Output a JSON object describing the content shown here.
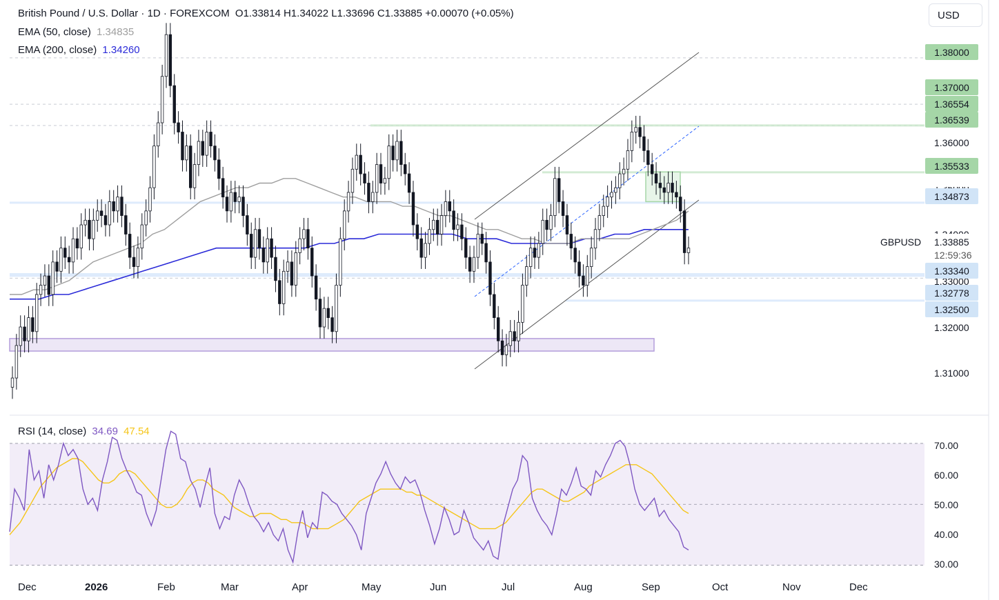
{
  "header": {
    "title": "British Pound / U.S. Dollar · 1D · FOREXCOM",
    "ohlc": "O1.33814 H1.34022 L1.33696 C1.33885 +0.00070 (+0.05%)",
    "ema50_label": "EMA (50, close)",
    "ema50_value": "1.34835",
    "ema200_label": "EMA (200, close)",
    "ema200_value": "1.34260",
    "rsi_label": "RSI (14, close)",
    "rsi_value": "34.69",
    "rsi_ma_value": "47.54"
  },
  "currency_button": "USD",
  "symbol": "GBPUSD",
  "countdown": "12:59:36",
  "colors": {
    "ema50": "#9e9e9e",
    "ema200": "#2a2ad8",
    "rsi": "#7e57c2",
    "rsi_ma": "#f5c518",
    "candle": "#131722",
    "support_zone": "#ede7f6",
    "resistance_tag": "#a5d6a7",
    "support_tag": "#d1e4f7"
  },
  "price_levels": {
    "resistance": [
      "1.38000",
      "1.37000",
      "1.36554",
      "1.36539",
      "1.35533"
    ],
    "pivot": "1.34873",
    "current": "1.33885",
    "support": [
      "1.33340",
      "1.32778",
      "1.32500"
    ]
  },
  "price_axis": [
    "1.36000",
    "1.35000",
    "1.34000",
    "1.33000",
    "1.32000",
    "1.31000"
  ],
  "rsi_axis": [
    "70.00",
    "60.00",
    "50.00",
    "40.00",
    "30.00"
  ],
  "time_axis": [
    "Dec",
    "2026",
    "Feb",
    "Mar",
    "Apr",
    "May",
    "Jun",
    "Jul",
    "Aug",
    "Sep",
    "Oct",
    "Nov",
    "Dec"
  ],
  "chart_data": {
    "type": "candlestick",
    "ylim": [
      1.307,
      1.388
    ],
    "rsi_ylim": [
      29,
      77
    ],
    "closes": [
      1.311,
      1.318,
      1.322,
      1.319,
      1.324,
      1.321,
      1.329,
      1.331,
      1.333,
      1.329,
      1.336,
      1.334,
      1.339,
      1.337,
      1.336,
      1.341,
      1.339,
      1.344,
      1.345,
      1.341,
      1.345,
      1.347,
      1.346,
      1.344,
      1.349,
      1.347,
      1.35,
      1.346,
      1.342,
      1.337,
      1.335,
      1.339,
      1.344,
      1.347,
      1.352,
      1.361,
      1.366,
      1.376,
      1.385,
      1.374,
      1.366,
      1.364,
      1.358,
      1.361,
      1.352,
      1.357,
      1.362,
      1.359,
      1.364,
      1.361,
      1.358,
      1.354,
      1.35,
      1.347,
      1.351,
      1.349,
      1.35,
      1.346,
      1.342,
      1.337,
      1.343,
      1.339,
      1.336,
      1.341,
      1.337,
      1.332,
      1.327,
      1.334,
      1.336,
      1.331,
      1.338,
      1.341,
      1.343,
      1.339,
      1.333,
      1.328,
      1.322,
      1.326,
      1.324,
      1.321,
      1.331,
      1.341,
      1.347,
      1.351,
      1.356,
      1.359,
      1.355,
      1.353,
      1.349,
      1.351,
      1.357,
      1.353,
      1.354,
      1.361,
      1.358,
      1.362,
      1.357,
      1.355,
      1.351,
      1.344,
      1.341,
      1.337,
      1.34,
      1.343,
      1.345,
      1.342,
      1.346,
      1.349,
      1.347,
      1.343,
      1.344,
      1.341,
      1.337,
      1.334,
      1.337,
      1.342,
      1.34,
      1.336,
      1.329,
      1.324,
      1.319,
      1.316,
      1.318,
      1.321,
      1.319,
      1.323,
      1.331,
      1.335,
      1.339,
      1.337,
      1.34,
      1.345,
      1.343,
      1.346,
      1.354,
      1.349,
      1.346,
      1.342,
      1.339,
      1.336,
      1.333,
      1.331,
      1.335,
      1.339,
      1.343,
      1.346,
      1.348,
      1.35,
      1.351,
      1.352,
      1.355,
      1.356,
      1.36,
      1.364,
      1.365,
      1.363,
      1.36,
      1.357,
      1.355,
      1.353,
      1.352,
      1.351,
      1.353,
      1.351,
      1.35,
      1.347,
      1.338,
      1.339
    ],
    "ema50": [
      1.329,
      1.329,
      1.33,
      1.33,
      1.331,
      1.332,
      1.334,
      1.336,
      1.337,
      1.338,
      1.339,
      1.34,
      1.342,
      1.343,
      1.345,
      1.347,
      1.349,
      1.35,
      1.351,
      1.352,
      1.352,
      1.353,
      1.353,
      1.354,
      1.354,
      1.353,
      1.352,
      1.351,
      1.35,
      1.35,
      1.349,
      1.349,
      1.349,
      1.348,
      1.348,
      1.347,
      1.346,
      1.346,
      1.345,
      1.344,
      1.343,
      1.343,
      1.342,
      1.341,
      1.341,
      1.34,
      1.34,
      1.34,
      1.341,
      1.341,
      1.341,
      1.341,
      1.341,
      1.342,
      1.343,
      1.344,
      1.345,
      1.347
    ],
    "ema200": [
      1.328,
      1.328,
      1.328,
      1.329,
      1.329,
      1.33,
      1.331,
      1.332,
      1.333,
      1.334,
      1.335,
      1.336,
      1.337,
      1.338,
      1.339,
      1.339,
      1.339,
      1.339,
      1.339,
      1.339,
      1.339,
      1.34,
      1.34,
      1.341,
      1.341,
      1.342,
      1.342,
      1.342,
      1.342,
      1.342,
      1.342,
      1.341,
      1.341,
      1.341,
      1.34,
      1.34,
      1.34,
      1.34,
      1.34,
      1.341,
      1.341,
      1.342,
      1.342,
      1.343,
      1.343,
      1.343,
      1.343
    ],
    "rsi": [
      41,
      55,
      52,
      48,
      68,
      58,
      61,
      52,
      63,
      58,
      63,
      70,
      66,
      68,
      65,
      55,
      50,
      52,
      48,
      58,
      64,
      72,
      71,
      65,
      61,
      58,
      54,
      53,
      47,
      43,
      48,
      58,
      68,
      74,
      73,
      65,
      64,
      58,
      55,
      49,
      56,
      62,
      47,
      42,
      46,
      45,
      53,
      58,
      55,
      50,
      46,
      44,
      41,
      44,
      40,
      38,
      42,
      35,
      31,
      41,
      48,
      39,
      44,
      42,
      54,
      53,
      51,
      50,
      47,
      45,
      43,
      40,
      35,
      47,
      52,
      57,
      60,
      64,
      60,
      57,
      55,
      59,
      57,
      58,
      54,
      48,
      43,
      37,
      42,
      49,
      45,
      40,
      41,
      48,
      44,
      39,
      37,
      35,
      38,
      33,
      32,
      43,
      49,
      55,
      58,
      66,
      64,
      52,
      48,
      45,
      43,
      40,
      47,
      55,
      53,
      57,
      62,
      56,
      55,
      53,
      61,
      59,
      63,
      66,
      70,
      71,
      69,
      63,
      55,
      50,
      48,
      50,
      52,
      46,
      48,
      45,
      43,
      41,
      36,
      35
    ],
    "rsi_ma": [
      40,
      42,
      44,
      47,
      50,
      53,
      56,
      58,
      60,
      62,
      63,
      64,
      65,
      65,
      64,
      62,
      60,
      58,
      57,
      57,
      58,
      60,
      61,
      61,
      60,
      58,
      56,
      54,
      52,
      50,
      49,
      49,
      50,
      52,
      55,
      57,
      58,
      58,
      57,
      55,
      54,
      53,
      51,
      49,
      48,
      47,
      46,
      46,
      47,
      47,
      47,
      46,
      45,
      45,
      44,
      44,
      44,
      43,
      42,
      42,
      42,
      42,
      43,
      44,
      45,
      47,
      49,
      51,
      52,
      53,
      54,
      55,
      55,
      55,
      55,
      55,
      54,
      54,
      53,
      53,
      52,
      51,
      50,
      49,
      48,
      47,
      46,
      45,
      44,
      43,
      42,
      42,
      42,
      42,
      43,
      44,
      46,
      48,
      50,
      52,
      54,
      55,
      55,
      54,
      53,
      52,
      51,
      51,
      52,
      53,
      54,
      56,
      57,
      58,
      59,
      60,
      61,
      62,
      63,
      63,
      63,
      62,
      61,
      60,
      58,
      56,
      54,
      52,
      50,
      48,
      47
    ]
  }
}
